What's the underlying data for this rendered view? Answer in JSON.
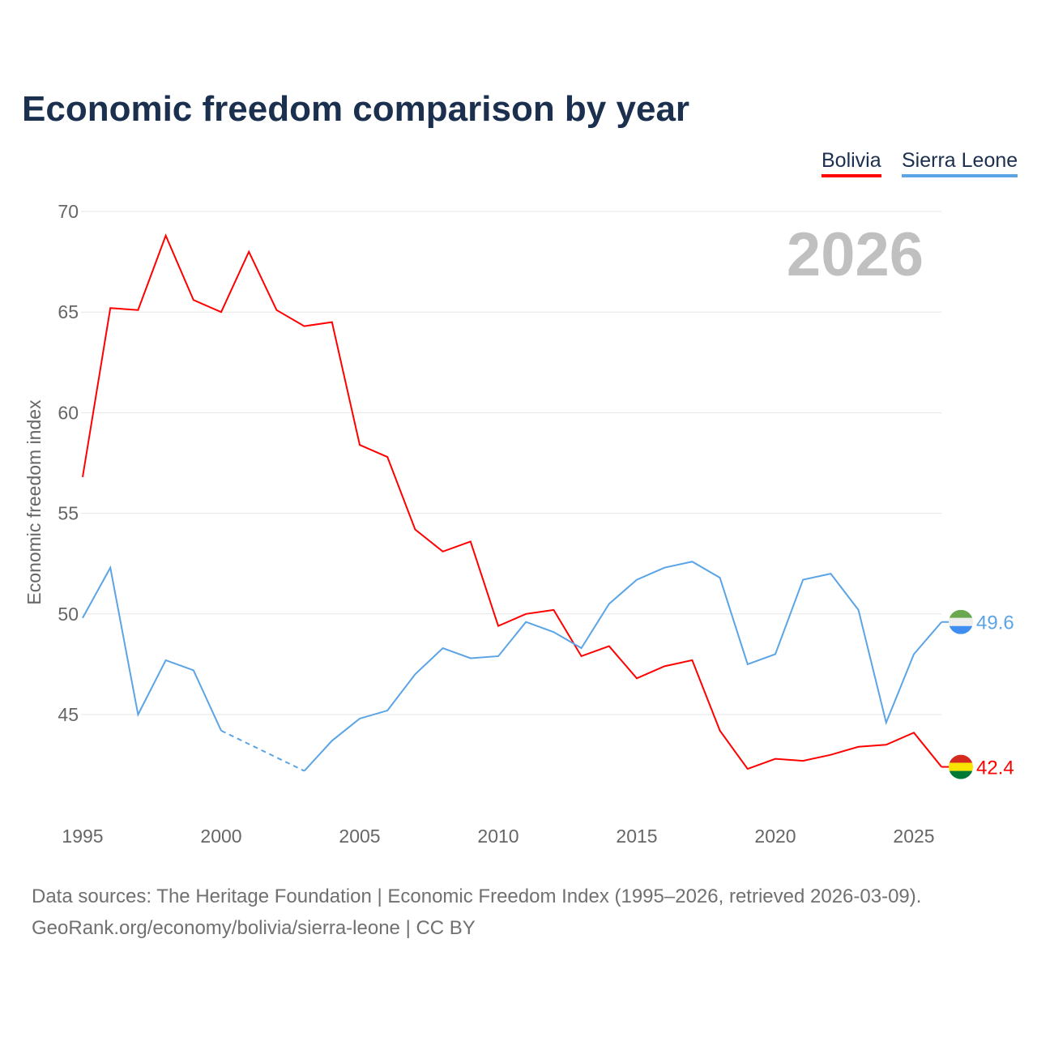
{
  "title": "Economic freedom comparison by year",
  "footer": {
    "line1": "Data sources: The Heritage Foundation | Economic Freedom Index (1995–2026, retrieved 2026-03-09).",
    "line2": "GeoRank.org/economy/bolivia/sierra-leone | CC BY"
  },
  "chart_data": {
    "type": "line",
    "title": "Economic freedom comparison by year",
    "ylabel": "Economic freedom index",
    "xlabel": "",
    "year_label": "2026",
    "ylim": [
      40,
      70
    ],
    "xlim": [
      1995,
      2026
    ],
    "yticks": [
      "45",
      "50",
      "55",
      "60",
      "65",
      "70"
    ],
    "xticks": [
      "1995",
      "2000",
      "2005",
      "2010",
      "2015",
      "2020",
      "2025"
    ],
    "legend_placement": "top-right",
    "x": [
      1995,
      1996,
      1997,
      1998,
      1999,
      2000,
      2001,
      2002,
      2003,
      2004,
      2005,
      2006,
      2007,
      2008,
      2009,
      2010,
      2011,
      2012,
      2013,
      2014,
      2015,
      2016,
      2017,
      2018,
      2019,
      2020,
      2021,
      2022,
      2023,
      2024,
      2025,
      2026
    ],
    "series": [
      {
        "name": "Bolivia",
        "color": "#ff0000",
        "end_label": "42.4",
        "values": [
          56.8,
          65.2,
          65.1,
          68.8,
          65.6,
          65.0,
          68.0,
          65.1,
          64.3,
          64.5,
          58.4,
          57.8,
          54.2,
          53.1,
          53.6,
          49.4,
          50.0,
          50.2,
          47.9,
          48.4,
          46.8,
          47.4,
          47.7,
          44.2,
          42.3,
          42.8,
          42.7,
          43.0,
          43.4,
          43.5,
          44.1,
          42.4
        ]
      },
      {
        "name": "Sierra Leone",
        "color": "#5ba4e5",
        "end_label": "49.6",
        "values": [
          49.8,
          52.3,
          45.0,
          47.7,
          47.2,
          44.2,
          null,
          null,
          42.2,
          43.7,
          44.8,
          45.2,
          47.0,
          48.3,
          47.8,
          47.9,
          49.6,
          49.1,
          48.3,
          50.5,
          51.7,
          52.3,
          52.6,
          51.8,
          47.5,
          48.0,
          51.7,
          52.0,
          50.2,
          44.6,
          48.0,
          49.6
        ]
      }
    ]
  }
}
